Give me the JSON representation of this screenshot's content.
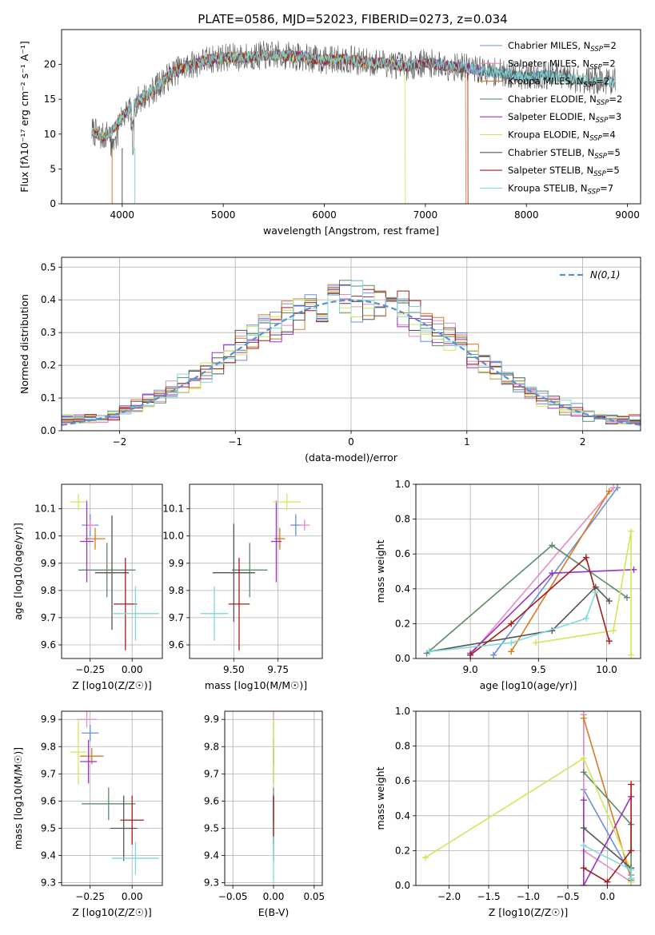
{
  "figure": {
    "title": "PLATE=0586, MJD=52023, FIBERID=0273, z=0.034"
  },
  "models": [
    {
      "name": "Chabrier MILES",
      "nssp": "2",
      "color": "#6a8fd8"
    },
    {
      "name": "Salpeter MILES",
      "nssp": "2",
      "color": "#e58cc4"
    },
    {
      "name": "Kroupa MILES",
      "nssp": "2",
      "color": "#d97a20"
    },
    {
      "name": "Chabrier ELODIE",
      "nssp": "2",
      "color": "#5e8a68"
    },
    {
      "name": "Salpeter ELODIE",
      "nssp": "3",
      "color": "#9b32c4"
    },
    {
      "name": "Kroupa ELODIE",
      "nssp": "4",
      "color": "#cfe858"
    },
    {
      "name": "Chabrier STELIB",
      "nssp": "5",
      "color": "#555555"
    },
    {
      "name": "Salpeter STELIB",
      "nssp": "5",
      "color": "#a51c1c"
    },
    {
      "name": "Kroupa STELIB",
      "nssp": "7",
      "color": "#7fdada"
    }
  ],
  "chart_data": [
    {
      "id": "spectrum",
      "type": "line",
      "xlabel": "wavelength [Angstrom, rest frame]",
      "ylabel": "Flux [fλ10⁻¹⁷ erg cm⁻² s⁻¹ A⁻¹]",
      "xlim": [
        3400,
        9130
      ],
      "ylim": [
        0,
        25
      ],
      "xticks": [
        4000,
        5000,
        6000,
        7000,
        8000,
        9000
      ],
      "yticks": [
        0,
        5,
        10,
        15,
        20
      ],
      "legend_label_template": "{name}, N_SSP={nssp}",
      "continuum_anchors": {
        "x": [
          3700,
          3800,
          3900,
          4000,
          4100,
          4200,
          4300,
          4400,
          4500,
          4600,
          4800,
          5000,
          5200,
          5400,
          5600,
          5800,
          6000,
          6200,
          6400,
          6600,
          6800,
          7000,
          7200,
          7400,
          7600,
          7800,
          8000,
          8200,
          8400,
          8600,
          8800,
          8900
        ],
        "y": [
          10.5,
          9.5,
          10.5,
          12.5,
          14.2,
          15.2,
          16.2,
          17.5,
          18.8,
          19.5,
          20.5,
          21.0,
          21.0,
          21.3,
          21.3,
          21.0,
          20.6,
          20.8,
          20.3,
          20.2,
          19.7,
          20.3,
          19.8,
          19.5,
          19.0,
          18.7,
          18.3,
          18.5,
          18.0,
          17.8,
          17.6,
          17.5
        ]
      },
      "model_ranges": [
        {
          "x": [
            3700,
            8300
          ]
        },
        {
          "x": [
            3700,
            7550
          ]
        },
        {
          "x": [
            3700,
            7400
          ]
        },
        {
          "x": [
            3700,
            8300
          ]
        },
        {
          "x": [
            3700,
            7550
          ]
        },
        {
          "x": [
            3700,
            6800
          ]
        },
        {
          "x": [
            3700,
            8880
          ]
        },
        {
          "x": [
            3700,
            7420
          ]
        },
        {
          "x": [
            3700,
            8880
          ]
        }
      ]
    },
    {
      "id": "residuals",
      "type": "histogram",
      "xlabel": "(data-model)/error",
      "ylabel": "Normed distribution",
      "xlim": [
        -2.5,
        2.5
      ],
      "ylim": [
        0,
        0.53
      ],
      "xticks": [
        -2,
        -1,
        0,
        1,
        2
      ],
      "yticks": [
        0.0,
        0.1,
        0.2,
        0.3,
        0.4,
        0.5
      ],
      "bin_width": 0.1,
      "reference_label": "N(0,1)",
      "reference_color": "#5b8fd4"
    },
    {
      "id": "age-vs-Z",
      "type": "errorbar",
      "xlabel": "Z [log10(Z/Z☉)]",
      "ylabel": "age [log10(age/yr)]",
      "xlim": [
        -0.42,
        0.18
      ],
      "ylim": [
        9.55,
        10.19
      ],
      "xticks": [
        -0.25,
        0.0
      ],
      "yticks": [
        9.6,
        9.7,
        9.8,
        9.9,
        10.0,
        10.1
      ],
      "points": [
        {
          "x": -0.25,
          "y": 10.04,
          "xerr": 0.05,
          "yerr": 0.04
        },
        {
          "x": -0.25,
          "y": 10.04,
          "xerr": 0.03,
          "yerr": 0.02
        },
        {
          "x": -0.22,
          "y": 9.99,
          "xerr": 0.06,
          "yerr": 0.04
        },
        {
          "x": -0.15,
          "y": 9.875,
          "xerr": 0.17,
          "yerr": 0.1
        },
        {
          "x": -0.27,
          "y": 9.98,
          "xerr": 0.04,
          "yerr": 0.15
        },
        {
          "x": -0.32,
          "y": 10.125,
          "xerr": 0.05,
          "yerr": 0.03
        },
        {
          "x": -0.12,
          "y": 9.865,
          "xerr": 0.1,
          "yerr": 0.21
        },
        {
          "x": -0.04,
          "y": 9.75,
          "xerr": 0.07,
          "yerr": 0.17
        },
        {
          "x": 0.02,
          "y": 9.715,
          "xerr": 0.14,
          "yerr": 0.1
        }
      ]
    },
    {
      "id": "age-vs-mass",
      "type": "errorbar",
      "xlabel": "mass [log10(M/M☉)]",
      "ylabel": "",
      "xlim": [
        9.25,
        10.0
      ],
      "ylim": [
        9.55,
        10.19
      ],
      "xticks": [
        9.5,
        9.75
      ],
      "yticks": [
        9.6,
        9.7,
        9.8,
        9.9,
        10.0,
        10.1
      ],
      "points": [
        {
          "x": 9.85,
          "y": 10.04,
          "xerr": 0.03,
          "yerr": 0.04
        },
        {
          "x": 9.9,
          "y": 10.04,
          "xerr": 0.03,
          "yerr": 0.02
        },
        {
          "x": 9.76,
          "y": 9.99,
          "xerr": 0.03,
          "yerr": 0.04
        },
        {
          "x": 9.59,
          "y": 9.875,
          "xerr": 0.1,
          "yerr": 0.1
        },
        {
          "x": 9.74,
          "y": 9.98,
          "xerr": 0.03,
          "yerr": 0.15
        },
        {
          "x": 9.8,
          "y": 10.125,
          "xerr": 0.08,
          "yerr": 0.03
        },
        {
          "x": 9.5,
          "y": 9.865,
          "xerr": 0.12,
          "yerr": 0.18
        },
        {
          "x": 9.53,
          "y": 9.75,
          "xerr": 0.06,
          "yerr": 0.17
        },
        {
          "x": 9.39,
          "y": 9.715,
          "xerr": 0.08,
          "yerr": 0.1
        }
      ]
    },
    {
      "id": "massweight-vs-age",
      "type": "line",
      "xlabel": "age [log10(age/yr)]",
      "ylabel": "mass weight",
      "xlim": [
        8.6,
        10.25
      ],
      "ylim": [
        0.0,
        1.0
      ],
      "xticks": [
        9.0,
        9.5,
        10.0
      ],
      "yticks": [
        0.0,
        0.2,
        0.4,
        0.6,
        0.8,
        1.0
      ],
      "series": [
        {
          "x": [
            9.17,
            10.08
          ],
          "y": [
            0.02,
            0.98
          ]
        },
        {
          "x": [
            9.0,
            10.05
          ],
          "y": [
            0.02,
            0.98
          ]
        },
        {
          "x": [
            9.3,
            10.02
          ],
          "y": [
            0.04,
            0.96
          ]
        },
        {
          "x": [
            8.68,
            9.6,
            10.15
          ],
          "y": [
            0.03,
            0.65,
            0.35
          ]
        },
        {
          "x": [
            9.0,
            9.6,
            10.2
          ],
          "y": [
            0.03,
            0.49,
            0.51
          ]
        },
        {
          "x": [
            9.48,
            10.05,
            10.18,
            10.18
          ],
          "y": [
            0.09,
            0.16,
            0.73,
            0.02
          ]
        },
        {
          "x": [
            8.7,
            9.6,
            9.92,
            10.02
          ],
          "y": [
            0.04,
            0.16,
            0.41,
            0.33
          ]
        },
        {
          "x": [
            9.0,
            9.3,
            9.85,
            10.02
          ],
          "y": [
            0.02,
            0.2,
            0.58,
            0.1
          ]
        },
        {
          "x": [
            8.7,
            9.3,
            9.85,
            9.92
          ],
          "y": [
            0.04,
            0.09,
            0.23,
            0.38
          ]
        }
      ]
    },
    {
      "id": "mass-vs-Z",
      "type": "errorbar",
      "xlabel": "Z [log10(Z/Z☉)]",
      "ylabel": "mass [log10(M/M☉)]",
      "xlim": [
        -0.42,
        0.18
      ],
      "ylim": [
        9.29,
        9.93
      ],
      "xticks": [
        -0.25,
        0.0
      ],
      "yticks": [
        9.3,
        9.4,
        9.5,
        9.6,
        9.7,
        9.8,
        9.9
      ],
      "points": [
        {
          "x": -0.25,
          "y": 9.85,
          "xerr": 0.05,
          "yerr": 0.03
        },
        {
          "x": -0.27,
          "y": 9.9,
          "xerr": 0.06,
          "yerr": 0.03
        },
        {
          "x": -0.24,
          "y": 9.765,
          "xerr": 0.07,
          "yerr": 0.03
        },
        {
          "x": -0.14,
          "y": 9.59,
          "xerr": 0.16,
          "yerr": 0.06
        },
        {
          "x": -0.26,
          "y": 9.745,
          "xerr": 0.05,
          "yerr": 0.08
        },
        {
          "x": -0.32,
          "y": 9.78,
          "xerr": 0.05,
          "yerr": 0.12
        },
        {
          "x": -0.05,
          "y": 9.5,
          "xerr": 0.08,
          "yerr": 0.12
        },
        {
          "x": 0.0,
          "y": 9.53,
          "xerr": 0.07,
          "yerr": 0.09
        },
        {
          "x": 0.02,
          "y": 9.39,
          "xerr": 0.14,
          "yerr": 0.06
        }
      ]
    },
    {
      "id": "mass-vs-EBV",
      "type": "errorbar",
      "xlabel": "E(B-V)",
      "ylabel": "",
      "xlim": [
        -0.06,
        0.06
      ],
      "ylim": [
        9.29,
        9.93
      ],
      "xticks": [
        -0.05,
        0.0,
        0.05
      ],
      "yticks": [
        9.3,
        9.4,
        9.5,
        9.6,
        9.7,
        9.8,
        9.9
      ],
      "points": [
        {
          "x": 0.0,
          "y": 9.85,
          "xerr": 0.0,
          "yerr": 0.03
        },
        {
          "x": 0.0,
          "y": 9.9,
          "xerr": 0.0,
          "yerr": 0.03
        },
        {
          "x": 0.0,
          "y": 9.765,
          "xerr": 0.0,
          "yerr": 0.03
        },
        {
          "x": 0.0,
          "y": 9.59,
          "xerr": 0.0,
          "yerr": 0.06
        },
        {
          "x": 0.0,
          "y": 9.745,
          "xerr": 0.0,
          "yerr": 0.08
        },
        {
          "x": 0.0,
          "y": 9.78,
          "xerr": 0.0,
          "yerr": 0.12
        },
        {
          "x": 0.0,
          "y": 9.5,
          "xerr": 0.0,
          "yerr": 0.12
        },
        {
          "x": 0.0,
          "y": 9.53,
          "xerr": 0.0,
          "yerr": 0.09
        },
        {
          "x": 0.0,
          "y": 9.39,
          "xerr": 0.0,
          "yerr": 0.08
        }
      ]
    },
    {
      "id": "massweight-vs-Z",
      "type": "line",
      "xlabel": "Z [log10(Z/Z☉)]",
      "ylabel": "mass weight",
      "xlim": [
        -2.42,
        0.42
      ],
      "ylim": [
        0.0,
        1.0
      ],
      "xticks": [
        -2.0,
        -1.5,
        -1.0,
        -0.5,
        0.0
      ],
      "yticks": [
        0.0,
        0.2,
        0.4,
        0.6,
        0.8,
        1.0
      ],
      "series": [
        {
          "x": [
            -0.3,
            -0.3,
            0.3,
            0.3
          ],
          "y": [
            0.98,
            0.55,
            0.06,
            0.02
          ]
        },
        {
          "x": [
            -0.3,
            -0.3,
            0.3
          ],
          "y": [
            0.98,
            0.2,
            0.02
          ]
        },
        {
          "x": [
            -0.3,
            0.3,
            0.3
          ],
          "y": [
            0.96,
            0.04,
            0.02
          ]
        },
        {
          "x": [
            -0.3,
            0.3,
            0.3
          ],
          "y": [
            0.65,
            0.35,
            0.03
          ]
        },
        {
          "x": [
            -0.3,
            -0.3,
            0.3
          ],
          "y": [
            0.49,
            0.0,
            0.51
          ]
        },
        {
          "x": [
            -2.3,
            -0.3,
            0.3,
            0.3
          ],
          "y": [
            0.16,
            0.73,
            0.09,
            0.02
          ]
        },
        {
          "x": [
            -0.3,
            0.3,
            0.3
          ],
          "y": [
            0.33,
            0.1,
            0.04
          ]
        },
        {
          "x": [
            -0.3,
            0.0,
            0.3,
            0.3
          ],
          "y": [
            0.1,
            0.02,
            0.2,
            0.58
          ]
        },
        {
          "x": [
            -0.3,
            0.3,
            0.3
          ],
          "y": [
            0.23,
            0.09,
            0.04
          ]
        }
      ]
    }
  ]
}
